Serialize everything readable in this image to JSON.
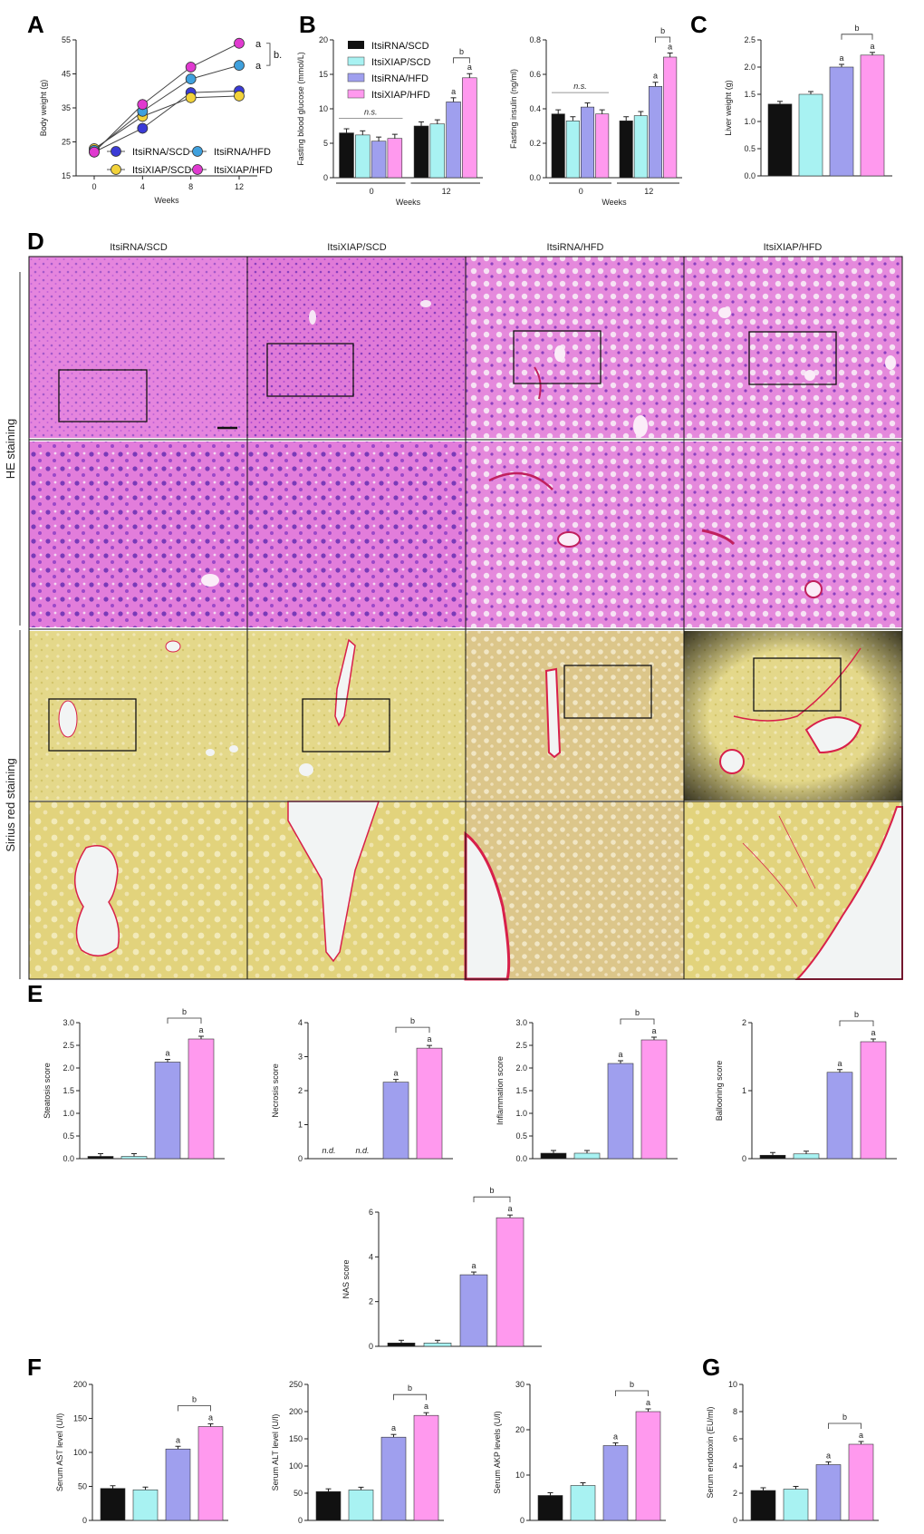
{
  "colors": {
    "itsiRNA_SCD": "#111111",
    "itsiXIAP_SCD": "#a8f2f2",
    "itsiRNA_HFD": "#9f9fee",
    "itsiXIAP_HFD": "#ff99ee",
    "A_itsiRNA_SCD": "#3b3bd6",
    "A_itsiXIAP_SCD": "#f2d23a",
    "A_itsiRNA_HFD": "#3fa0dd",
    "A_itsiXIAP_HFD": "#e03ad0",
    "he_tissue": "#e07ad8",
    "sirius_tissue": "#e4d88a",
    "sirius_fiber": "#d8204a"
  },
  "panel_labels": {
    "A": "A",
    "B": "B",
    "C": "C",
    "D": "D",
    "E": "E",
    "F": "F",
    "G": "G"
  },
  "legend": {
    "itsiRNA_SCD": "ItsiRNA/SCD",
    "itsiXIAP_SCD": "ItsiXIAP/SCD",
    "itsiRNA_HFD": "ItsiRNA/HFD",
    "itsiXIAP_HFD": "ItsiXIAP/HFD"
  },
  "panel_D": {
    "col_titles": [
      "ItsiRNA/SCD",
      "ItsiXIAP/SCD",
      "ItsiRNA/HFD",
      "ItsiXIAP/HFD"
    ],
    "row_labels": [
      "HE staining",
      "Sirius red staining"
    ]
  },
  "chart_data": [
    {
      "id": "A",
      "type": "line",
      "ylabel": "Body weight (g)",
      "xlabel": "Weeks",
      "x": [
        0,
        4,
        8,
        12
      ],
      "ylim": [
        15,
        55
      ],
      "yticks": [
        15,
        25,
        35,
        45,
        55
      ],
      "series": [
        {
          "name": "ItsiRNA/SCD",
          "values": [
            22,
            29,
            39.5,
            40
          ]
        },
        {
          "name": "ItsiXIAP/SCD",
          "values": [
            23,
            32.5,
            38,
            38.5
          ]
        },
        {
          "name": "ItsiRNA/HFD",
          "values": [
            22.5,
            34,
            43.5,
            47.5
          ]
        },
        {
          "name": "ItsiXIAP/HFD",
          "values": [
            22,
            36,
            47,
            54
          ]
        }
      ],
      "annotations": [
        "a",
        "a",
        "b"
      ]
    },
    {
      "id": "B1",
      "type": "bar",
      "ylabel": "Fasting blood glucose (mmol/L)",
      "xlabel": "Weeks",
      "categories": [
        "0",
        "12"
      ],
      "ylim": [
        0,
        20
      ],
      "yticks": [
        0,
        5,
        10,
        15,
        20
      ],
      "series": [
        {
          "name": "ItsiRNA/SCD",
          "values": [
            6.5,
            7.5
          ]
        },
        {
          "name": "ItsiXIAP/SCD",
          "values": [
            6.2,
            7.8
          ]
        },
        {
          "name": "ItsiRNA/HFD",
          "values": [
            5.3,
            11
          ]
        },
        {
          "name": "ItsiXIAP/HFD",
          "values": [
            5.7,
            14.5
          ]
        }
      ],
      "annotations": [
        "n.s.",
        "a",
        "a",
        "b"
      ]
    },
    {
      "id": "B2",
      "type": "bar",
      "ylabel": "Fasting insulin (ng/ml)",
      "xlabel": "Weeks",
      "categories": [
        "0",
        "12"
      ],
      "ylim": [
        0,
        0.8
      ],
      "yticks": [
        0.0,
        0.2,
        0.4,
        0.6,
        0.8
      ],
      "series": [
        {
          "name": "ItsiRNA/SCD",
          "values": [
            0.37,
            0.33
          ]
        },
        {
          "name": "ItsiXIAP/SCD",
          "values": [
            0.33,
            0.36
          ]
        },
        {
          "name": "ItsiRNA/HFD",
          "values": [
            0.41,
            0.53
          ]
        },
        {
          "name": "ItsiXIAP/HFD",
          "values": [
            0.37,
            0.7
          ]
        }
      ],
      "annotations": [
        "n.s.",
        "a",
        "a",
        "b"
      ]
    },
    {
      "id": "C",
      "type": "bar",
      "ylabel": "Liver weight (g)",
      "ylim": [
        0,
        2.5
      ],
      "yticks": [
        0.0,
        0.5,
        1.0,
        1.5,
        2.0,
        2.5
      ],
      "values": [
        1.32,
        1.5,
        2.0,
        2.22
      ],
      "annotations": [
        "a",
        "a",
        "b"
      ]
    },
    {
      "id": "E1",
      "type": "bar",
      "ylabel": "Steatosis score",
      "ylim": [
        0,
        3.0
      ],
      "yticks": [
        0.0,
        0.5,
        1.0,
        1.5,
        2.0,
        2.5,
        3.0
      ],
      "values": [
        0.05,
        0.05,
        2.13,
        2.64
      ],
      "annotations": [
        "a",
        "a",
        "b"
      ]
    },
    {
      "id": "E2",
      "type": "bar",
      "ylabel": "Necrosis score",
      "ylim": [
        0,
        4
      ],
      "yticks": [
        0,
        1,
        2,
        3,
        4
      ],
      "values": [
        0,
        0,
        2.25,
        3.25
      ],
      "annotations": [
        "n.d.",
        "n.d.",
        "a",
        "a",
        "b"
      ]
    },
    {
      "id": "E3",
      "type": "bar",
      "ylabel": "Inflammation score",
      "ylim": [
        0,
        3.0
      ],
      "yticks": [
        0.0,
        0.5,
        1.0,
        1.5,
        2.0,
        2.5,
        3.0
      ],
      "values": [
        0.12,
        0.12,
        2.1,
        2.62
      ],
      "annotations": [
        "a",
        "a",
        "b"
      ]
    },
    {
      "id": "E4",
      "type": "bar",
      "ylabel": "Ballooning score",
      "ylim": [
        0,
        2
      ],
      "yticks": [
        0,
        1,
        2
      ],
      "values": [
        0.05,
        0.07,
        1.27,
        1.72
      ],
      "annotations": [
        "a",
        "a",
        "b"
      ]
    },
    {
      "id": "E5",
      "type": "bar",
      "ylabel": "NAS score",
      "ylim": [
        0,
        6
      ],
      "yticks": [
        0,
        2,
        4,
        6
      ],
      "values": [
        0.15,
        0.15,
        3.2,
        5.75
      ],
      "annotations": [
        "a",
        "a",
        "b"
      ]
    },
    {
      "id": "F1",
      "type": "bar",
      "ylabel": "Serum AST level (U/l)",
      "ylim": [
        0,
        200
      ],
      "yticks": [
        0,
        50,
        100,
        150,
        200
      ],
      "values": [
        47,
        45,
        105,
        138
      ],
      "annotations": [
        "a",
        "a",
        "b"
      ]
    },
    {
      "id": "F2",
      "type": "bar",
      "ylabel": "Serum ALT level (U/l)",
      "ylim": [
        0,
        250
      ],
      "yticks": [
        0,
        50,
        100,
        150,
        200,
        250
      ],
      "values": [
        53,
        56,
        153,
        193
      ],
      "annotations": [
        "a",
        "a",
        "b"
      ]
    },
    {
      "id": "F3",
      "type": "bar",
      "ylabel": "Serum AKP levels (U/l)",
      "ylim": [
        0,
        30
      ],
      "yticks": [
        0,
        10,
        20,
        30
      ],
      "values": [
        5.5,
        7.7,
        16.5,
        24
      ],
      "annotations": [
        "a",
        "a",
        "b"
      ]
    },
    {
      "id": "G",
      "type": "bar",
      "ylabel": "Serum endotoxin (EU/ml)",
      "ylim": [
        0,
        10
      ],
      "yticks": [
        0,
        2,
        4,
        6,
        8,
        10
      ],
      "values": [
        2.2,
        2.3,
        4.1,
        5.6
      ],
      "annotations": [
        "a",
        "a",
        "b"
      ]
    }
  ]
}
